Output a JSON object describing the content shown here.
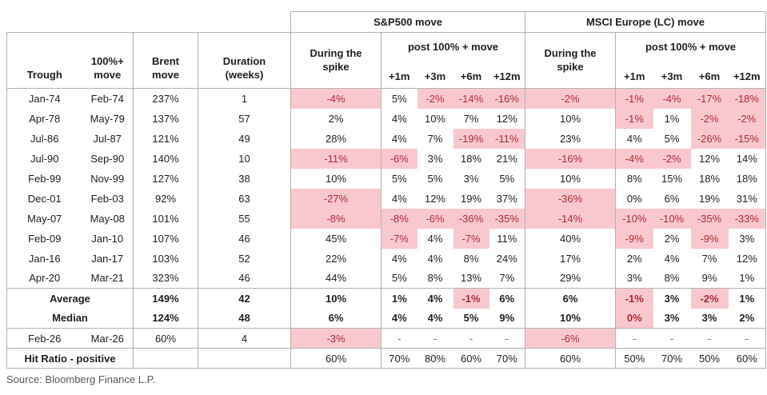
{
  "colors": {
    "border": "#b3b3b3",
    "negative_bg": "#f8c8ce",
    "negative_text": "#b02a37",
    "text": "#1f1f1f"
  },
  "chart_data": {
    "type": "table",
    "source": "Source: Bloomberg Finance L.P.",
    "header": {
      "group_sp": "S&P500 move",
      "group_msci": "MSCI Europe (LC) move",
      "post": "post 100% + move",
      "trough": "Trough",
      "pct_move": "100%+ move",
      "brent": "Brent move",
      "duration": "Duration (weeks)",
      "during": "During the spike",
      "months": [
        "+1m",
        "+3m",
        "+6m",
        "+12m"
      ]
    },
    "rows": [
      {
        "cells": [
          "Jan-74",
          "Feb-74",
          "237%",
          "1",
          "-4%",
          "5%",
          "-2%",
          "-14%",
          "-16%",
          "-2%",
          "-1%",
          "-4%",
          "-17%",
          "-18%"
        ],
        "pink": [
          4,
          6,
          7,
          8,
          9,
          10,
          11,
          12,
          13
        ]
      },
      {
        "cells": [
          "Apr-78",
          "May-79",
          "137%",
          "57",
          "2%",
          "4%",
          "10%",
          "7%",
          "12%",
          "10%",
          "-1%",
          "1%",
          "-2%",
          "-2%"
        ],
        "pink": [
          10,
          12,
          13
        ]
      },
      {
        "cells": [
          "Jul-86",
          "Jul-87",
          "121%",
          "49",
          "28%",
          "4%",
          "7%",
          "-19%",
          "-11%",
          "23%",
          "4%",
          "5%",
          "-26%",
          "-15%"
        ],
        "pink": [
          7,
          8,
          12,
          13
        ]
      },
      {
        "cells": [
          "Jul-90",
          "Sep-90",
          "140%",
          "10",
          "-11%",
          "-6%",
          "3%",
          "18%",
          "21%",
          "-16%",
          "-4%",
          "-2%",
          "12%",
          "14%"
        ],
        "pink": [
          4,
          5,
          9,
          10,
          11
        ]
      },
      {
        "cells": [
          "Feb-99",
          "Nov-99",
          "127%",
          "38",
          "10%",
          "5%",
          "5%",
          "3%",
          "5%",
          "10%",
          "8%",
          "15%",
          "18%",
          "18%"
        ],
        "pink": []
      },
      {
        "cells": [
          "Dec-01",
          "Feb-03",
          "92%",
          "63",
          "-27%",
          "4%",
          "12%",
          "19%",
          "37%",
          "-36%",
          "0%",
          "6%",
          "19%",
          "31%"
        ],
        "pink": [
          4,
          9
        ]
      },
      {
        "cells": [
          "May-07",
          "May-08",
          "101%",
          "55",
          "-8%",
          "-8%",
          "-6%",
          "-36%",
          "-35%",
          "-14%",
          "-10%",
          "-10%",
          "-35%",
          "-33%"
        ],
        "pink": [
          4,
          5,
          6,
          7,
          8,
          9,
          10,
          11,
          12,
          13
        ]
      },
      {
        "cells": [
          "Feb-09",
          "Jan-10",
          "107%",
          "46",
          "45%",
          "-7%",
          "4%",
          "-7%",
          "11%",
          "40%",
          "-9%",
          "2%",
          "-9%",
          "3%"
        ],
        "pink": [
          5,
          7,
          10,
          12
        ]
      },
      {
        "cells": [
          "Jan-16",
          "Jan-17",
          "103%",
          "52",
          "22%",
          "4%",
          "4%",
          "8%",
          "24%",
          "17%",
          "2%",
          "4%",
          "7%",
          "12%"
        ],
        "pink": []
      },
      {
        "cells": [
          "Apr-20",
          "Mar-21",
          "323%",
          "46",
          "44%",
          "5%",
          "8%",
          "13%",
          "7%",
          "29%",
          "3%",
          "8%",
          "9%",
          "1%"
        ],
        "pink": []
      }
    ],
    "summary": [
      {
        "label": "Average",
        "brent": "149%",
        "duration": "42",
        "sp": [
          "10%",
          "1%",
          "4%",
          "-1%",
          "6%"
        ],
        "pink_sp": [
          3
        ],
        "msci": [
          "6%",
          "-1%",
          "3%",
          "-2%",
          "1%"
        ],
        "pink_msci": [
          1,
          3
        ]
      },
      {
        "label": "Median",
        "brent": "124%",
        "duration": "48",
        "sp": [
          "6%",
          "4%",
          "4%",
          "5%",
          "9%"
        ],
        "pink_sp": [],
        "msci": [
          "10%",
          "0%",
          "3%",
          "3%",
          "2%"
        ],
        "pink_msci": [
          1
        ]
      }
    ],
    "current": {
      "cells": [
        "Feb-26",
        "Mar-26",
        "60%",
        "4",
        "-3%",
        "-",
        "-",
        "-",
        "-",
        "-6%",
        "-",
        "-",
        "-",
        "-"
      ],
      "pink": [
        4,
        9
      ]
    },
    "hit_ratio": {
      "label": "Hit Ratio - positive",
      "sp": [
        "60%",
        "70%",
        "80%",
        "60%",
        "70%"
      ],
      "msci": [
        "60%",
        "50%",
        "70%",
        "50%",
        "60%"
      ]
    }
  }
}
